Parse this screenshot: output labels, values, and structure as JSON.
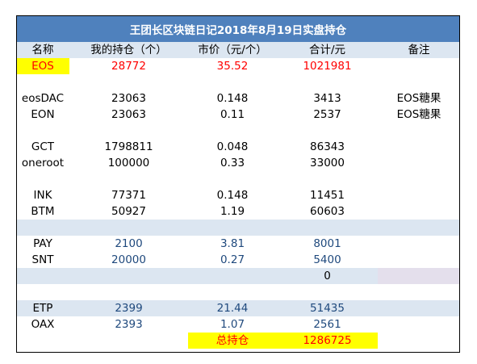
{
  "title": "王团长区块链日记2018年8月19日实盘持仓",
  "colors": {
    "header_bg": "#4f81bd",
    "band_bg": "#dce6f1",
    "highlight_yellow": "#ffff00",
    "highlight_lavender": "#e4dfec",
    "text_red": "#ff0000",
    "text_blue": "#1f497d"
  },
  "columns": [
    "名称",
    "我的持仓（个）",
    "市价（元/个）",
    "合计/元",
    "备注"
  ],
  "rows": {
    "eos": {
      "name": "EOS",
      "qty": "28772",
      "price": "35.52",
      "total": "1021981",
      "note": ""
    },
    "blank1": {
      "name": "",
      "qty": "",
      "price": "",
      "total": "",
      "note": ""
    },
    "eosdac": {
      "name": "eosDAC",
      "qty": "23063",
      "price": "0.148",
      "total": "3413",
      "note": "EOS糖果"
    },
    "eon": {
      "name": "EON",
      "qty": "23063",
      "price": "0.11",
      "total": "2537",
      "note": "EOS糖果"
    },
    "blank2": {
      "name": "",
      "qty": "",
      "price": "",
      "total": "",
      "note": ""
    },
    "gct": {
      "name": "GCT",
      "qty": "1798811",
      "price": "0.048",
      "total": "86343",
      "note": ""
    },
    "oneroot": {
      "name": "oneroot",
      "qty": "100000",
      "price": "0.33",
      "total": "33000",
      "note": ""
    },
    "blank3": {
      "name": "",
      "qty": "",
      "price": "",
      "total": "",
      "note": ""
    },
    "ink": {
      "name": "INK",
      "qty": "77371",
      "price": "0.148",
      "total": "11451",
      "note": ""
    },
    "btm": {
      "name": "BTM",
      "qty": "50927",
      "price": "1.19",
      "total": "60603",
      "note": ""
    },
    "blank4": {
      "name": "",
      "qty": "",
      "price": "",
      "total": "",
      "note": ""
    },
    "pay": {
      "name": "PAY",
      "qty": "2100",
      "price": "3.81",
      "total": "8001",
      "note": ""
    },
    "snt": {
      "name": "SNT",
      "qty": "20000",
      "price": "0.27",
      "total": "5400",
      "note": ""
    },
    "zero": {
      "name": "",
      "qty": "",
      "price": "",
      "total": "0",
      "note": ""
    },
    "blank5": {
      "name": "",
      "qty": "",
      "price": "",
      "total": "",
      "note": ""
    },
    "etp": {
      "name": "ETP",
      "qty": "2399",
      "price": "21.44",
      "total": "51435",
      "note": ""
    },
    "oax": {
      "name": "OAX",
      "qty": "2393",
      "price": "1.07",
      "total": "2561",
      "note": ""
    }
  },
  "summary": {
    "label": "总持仓",
    "total": "1286725"
  }
}
